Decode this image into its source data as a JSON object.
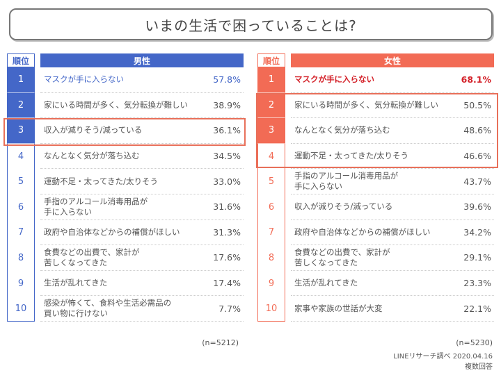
{
  "title": "いまの生活で困っていることは?",
  "rank_header": "順位",
  "colors": {
    "male": "#4467c8",
    "female": "#f26b55",
    "highlight": "#e8705a"
  },
  "male": {
    "header": "男性",
    "n": "(n=5212)",
    "rows": [
      {
        "rank": "1",
        "label": "マスクが手に入らない",
        "pct": "57.8%"
      },
      {
        "rank": "2",
        "label": "家にいる時間が多く、気分転換が難しい",
        "pct": "38.9%"
      },
      {
        "rank": "3",
        "label": "収入が減りそう/減っている",
        "pct": "36.1%"
      },
      {
        "rank": "4",
        "label": "なんとなく気分が落ち込む",
        "pct": "34.5%"
      },
      {
        "rank": "5",
        "label": "運動不足・太ってきた/太りそう",
        "pct": "33.0%"
      },
      {
        "rank": "6",
        "label": "手指のアルコール消毒用品が\n手に入らない",
        "pct": "31.6%"
      },
      {
        "rank": "7",
        "label": "政府や自治体などからの補償がほしい",
        "pct": "31.3%"
      },
      {
        "rank": "8",
        "label": "食費などの出費で、家計が\n苦しくなってきた",
        "pct": "17.6%"
      },
      {
        "rank": "9",
        "label": "生活が乱れてきた",
        "pct": "17.4%"
      },
      {
        "rank": "10",
        "label": "感染が怖くて、食料や生活必需品の\n買い物に行けない",
        "pct": "7.7%"
      }
    ]
  },
  "female": {
    "header": "女性",
    "n": "(n=5230)",
    "rows": [
      {
        "rank": "1",
        "label": "マスクが手に入らない",
        "pct": "68.1%"
      },
      {
        "rank": "2",
        "label": "家にいる時間が多く、気分転換が難しい",
        "pct": "50.5%"
      },
      {
        "rank": "3",
        "label": "なんとなく気分が落ち込む",
        "pct": "48.6%"
      },
      {
        "rank": "4",
        "label": "運動不足・太ってきた/太りそう",
        "pct": "46.6%"
      },
      {
        "rank": "5",
        "label": "手指のアルコール消毒用品が\n手に入らない",
        "pct": "43.7%"
      },
      {
        "rank": "6",
        "label": "収入が減りそう/減っている",
        "pct": "39.6%"
      },
      {
        "rank": "7",
        "label": "政府や自治体などからの補償がほしい",
        "pct": "34.2%"
      },
      {
        "rank": "8",
        "label": "食費などの出費で、家計が\n苦しくなってきた",
        "pct": "29.1%"
      },
      {
        "rank": "9",
        "label": "生活が乱れてきた",
        "pct": "23.3%"
      },
      {
        "rank": "10",
        "label": "家事や家族の世話が大変",
        "pct": "22.1%"
      }
    ]
  },
  "source": "LINEリサーチ調べ 2020.04.16",
  "note": "複数回答"
}
